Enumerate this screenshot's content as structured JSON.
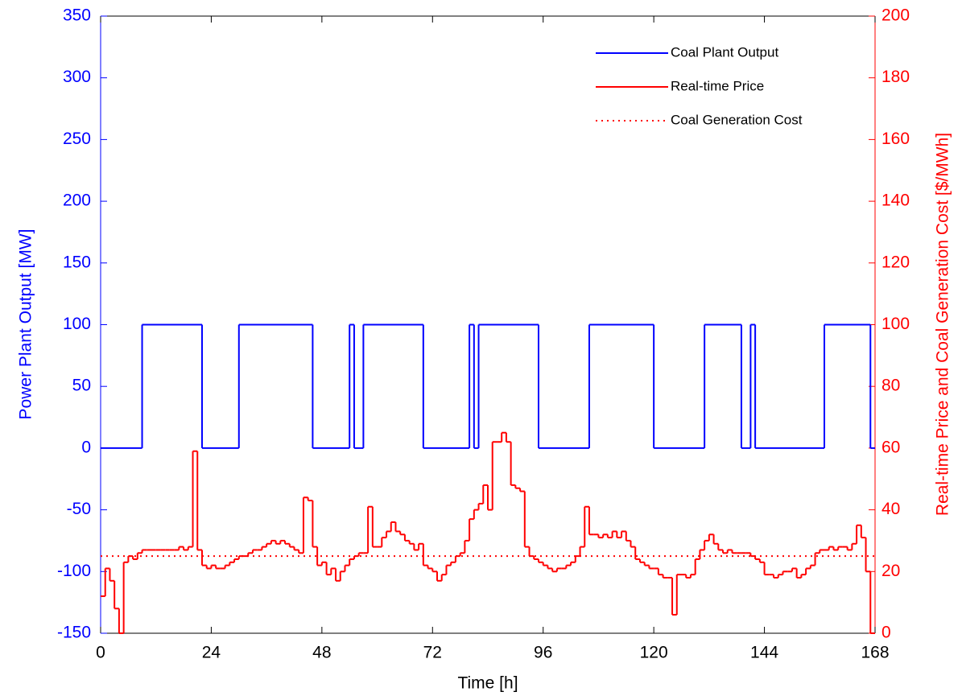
{
  "chart_data": {
    "type": "step",
    "xlabel": "Time [h]",
    "ylabel": "Power Plant Output [MW]",
    "y2label": "Real-time Price and Coal Generation Cost [$/MWh]",
    "xlim": [
      0,
      168
    ],
    "xticks": [
      0,
      24,
      48,
      72,
      96,
      120,
      144,
      168
    ],
    "ylim": [
      -150,
      350
    ],
    "yticks": [
      -150,
      -100,
      -50,
      0,
      50,
      100,
      150,
      200,
      250,
      300,
      350
    ],
    "y2lim": [
      0,
      200
    ],
    "y2ticks": [
      0,
      20,
      40,
      60,
      80,
      100,
      120,
      140,
      160,
      180,
      200
    ],
    "ycolor": "#0000ff",
    "y2color": "#ff0000",
    "legend": "upper right",
    "series": [
      {
        "name": "Coal Plant Output",
        "color": "#0000ff",
        "linestyle": "solid",
        "x": [
          0,
          9,
          22,
          30,
          46,
          54,
          55,
          57,
          70,
          80,
          81,
          82,
          95,
          106,
          120,
          131,
          139,
          141,
          142,
          157,
          167
        ],
        "values": [
          0,
          100,
          0,
          100,
          0,
          100,
          0,
          100,
          0,
          100,
          0,
          100,
          0,
          100,
          0,
          100,
          0,
          100,
          0,
          100,
          0
        ]
      },
      {
        "name": "Real-time Price",
        "color": "#ff0000",
        "linestyle": "solid",
        "axis": "y2",
        "x": [
          0,
          1,
          2,
          3,
          4,
          5,
          6,
          7,
          8,
          9,
          10,
          11,
          12,
          13,
          14,
          15,
          16,
          17,
          18,
          19,
          20,
          21,
          22,
          23,
          24,
          25,
          26,
          27,
          28,
          29,
          30,
          31,
          32,
          33,
          34,
          35,
          36,
          37,
          38,
          39,
          40,
          41,
          42,
          43,
          44,
          45,
          46,
          47,
          48,
          49,
          50,
          51,
          52,
          53,
          54,
          55,
          56,
          57,
          58,
          59,
          60,
          61,
          62,
          63,
          64,
          65,
          66,
          67,
          68,
          69,
          70,
          71,
          72,
          73,
          74,
          75,
          76,
          77,
          78,
          79,
          80,
          81,
          82,
          83,
          84,
          85,
          86,
          87,
          88,
          89,
          90,
          91,
          92,
          93,
          94,
          95,
          96,
          97,
          98,
          99,
          100,
          101,
          102,
          103,
          104,
          105,
          106,
          107,
          108,
          109,
          110,
          111,
          112,
          113,
          114,
          115,
          116,
          117,
          118,
          119,
          120,
          121,
          122,
          123,
          124,
          125,
          126,
          127,
          128,
          129,
          130,
          131,
          132,
          133,
          134,
          135,
          136,
          137,
          138,
          139,
          140,
          141,
          142,
          143,
          144,
          145,
          146,
          147,
          148,
          149,
          150,
          151,
          152,
          153,
          154,
          155,
          156,
          157,
          158,
          159,
          160,
          161,
          162,
          163,
          164,
          165,
          166,
          167
        ],
        "values": [
          12,
          21,
          17,
          8,
          0,
          23,
          25,
          24,
          26,
          27,
          27,
          27,
          27,
          27,
          27,
          27,
          27,
          28,
          27,
          28,
          59,
          27,
          22,
          21,
          22,
          21,
          21,
          22,
          23,
          24,
          25,
          25,
          26,
          27,
          27,
          28,
          29,
          30,
          29,
          30,
          29,
          28,
          27,
          26,
          44,
          43,
          28,
          22,
          23,
          19,
          21,
          17,
          20,
          22,
          24,
          25,
          26,
          26,
          41,
          28,
          28,
          31,
          33,
          36,
          33,
          32,
          30,
          29,
          27,
          29,
          22,
          21,
          20,
          17,
          19,
          22,
          23,
          25,
          26,
          30,
          37,
          40,
          42,
          48,
          40,
          62,
          62,
          65,
          62,
          48,
          47,
          46,
          28,
          25,
          24,
          23,
          22,
          21,
          20,
          21,
          21,
          22,
          23,
          25,
          28,
          41,
          32,
          32,
          31,
          32,
          31,
          33,
          31,
          33,
          30,
          28,
          24,
          23,
          22,
          21,
          21,
          19,
          18,
          18,
          6,
          19,
          19,
          18,
          19,
          24,
          27,
          30,
          32,
          29,
          27,
          26,
          27,
          26,
          26,
          26,
          26,
          25,
          24,
          23,
          19,
          19,
          18,
          19,
          20,
          20,
          21,
          18,
          19,
          21,
          22,
          26,
          27,
          27,
          28,
          27,
          28,
          28,
          27,
          29,
          35,
          31,
          20,
          0
        ]
      },
      {
        "name": "Coal Generation Cost",
        "color": "#ff0000",
        "linestyle": "dotted",
        "axis": "y2",
        "x": [
          0,
          168
        ],
        "values": [
          25,
          25
        ]
      }
    ]
  }
}
